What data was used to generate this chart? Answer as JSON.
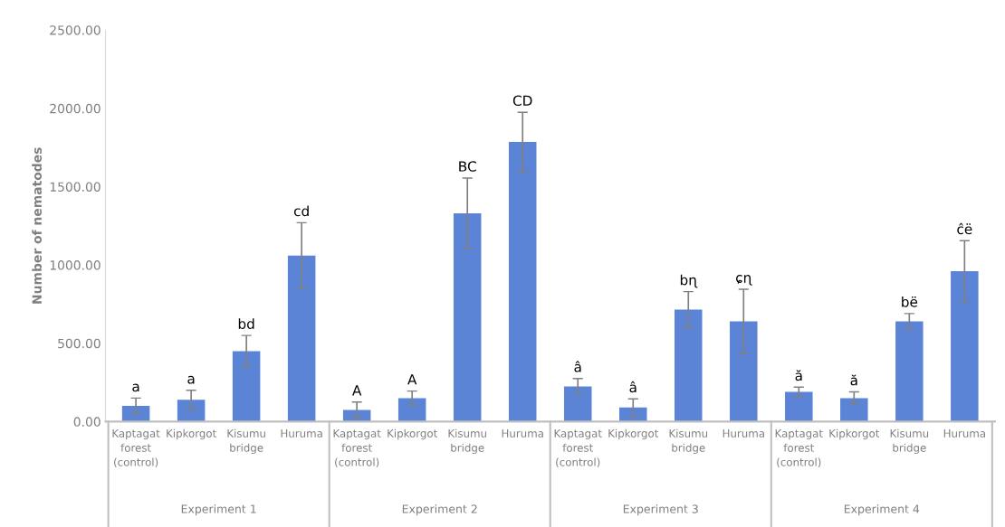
{
  "chart_data": {
    "type": "bar",
    "ylabel": "Number of nematodes",
    "categories": [
      "Kaptagat forest (control)",
      "Kipkorgot",
      "Kisumu bridge",
      "Huruma",
      "Kaptagat forest (control)",
      "Kipkorgot",
      "Kisumu bridge",
      "Huruma",
      "Kaptagat forest (control)",
      "Kipkorgot",
      "Kisumu bridge",
      "Huruma",
      "Kaptagat forest (control)",
      "Kipkorgot",
      "Kisumu bridge",
      "Huruma"
    ],
    "values": [
      100,
      140,
      450,
      1060,
      75,
      150,
      1330,
      1785,
      225,
      90,
      715,
      640,
      190,
      150,
      640,
      960
    ],
    "errors": [
      50,
      60,
      100,
      210,
      50,
      45,
      225,
      190,
      50,
      55,
      115,
      205,
      30,
      40,
      50,
      195
    ],
    "value_labels": [
      "a",
      "a",
      "bd",
      "cd",
      "A",
      "A",
      "BC",
      "CD",
      "â",
      "â",
      "bɳ",
      "ɕɳ",
      "ă",
      "ă",
      "bë",
      "ĉë"
    ],
    "color": "#5b83d6",
    "annotations": [
      "Experiment 1",
      "Experiment 2",
      "Experiment 3",
      "Experiment 4"
    ],
    "ylim": [
      0,
      2500
    ],
    "yticks": [
      {
        "value": 0,
        "label": "0.00"
      },
      {
        "value": 500,
        "label": "500.00"
      },
      {
        "value": 1000,
        "label": "1000.00"
      },
      {
        "value": 1500,
        "label": "1500.00"
      },
      {
        "value": 2000,
        "label": "2000.00"
      },
      {
        "value": 2500,
        "label": "2500.00"
      }
    ],
    "grid": false
  }
}
